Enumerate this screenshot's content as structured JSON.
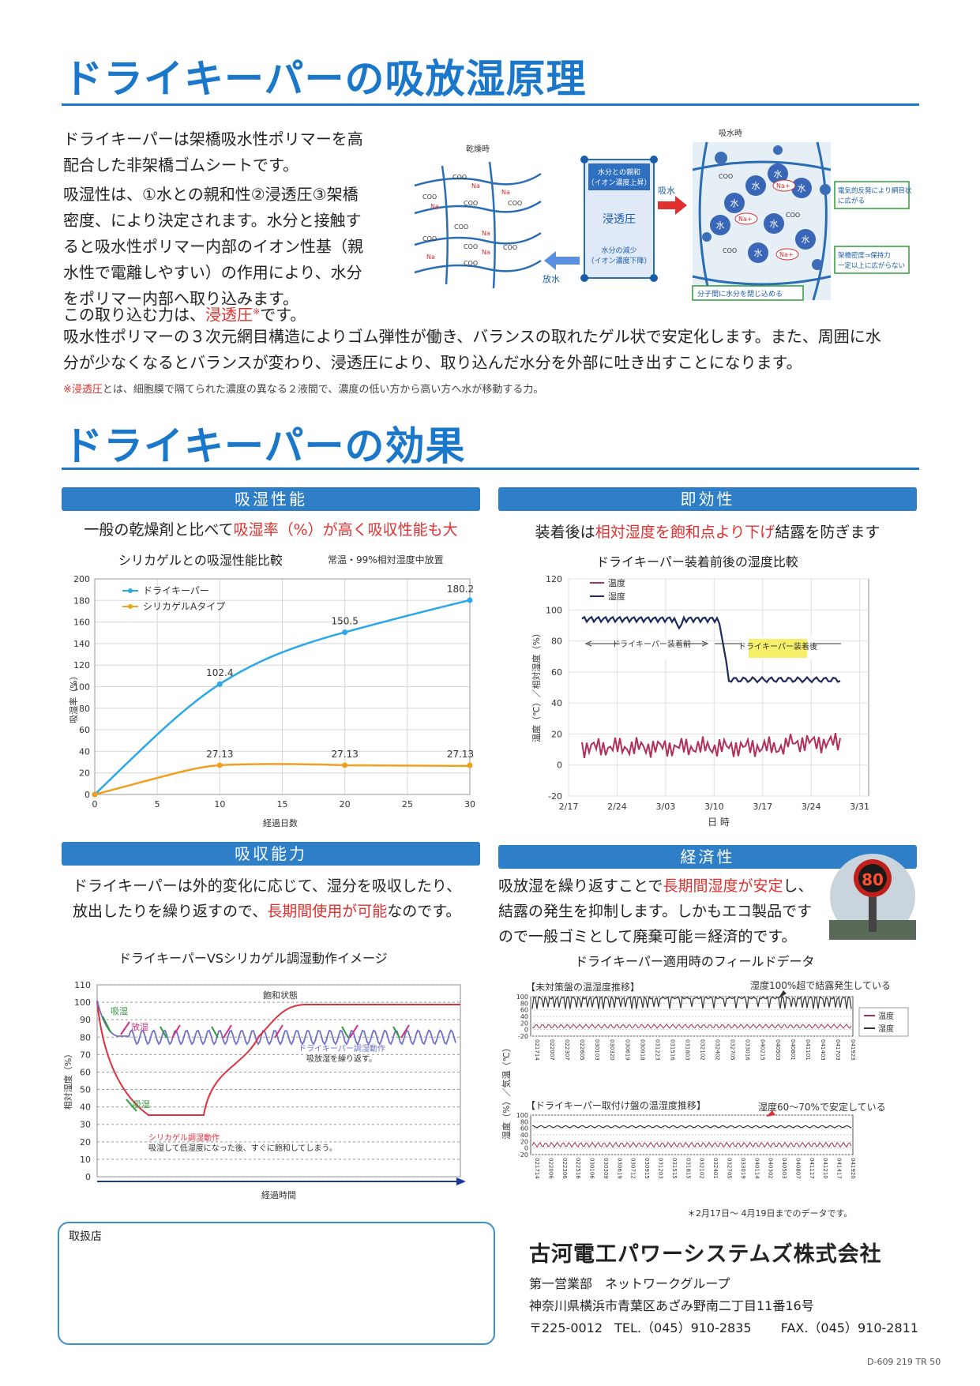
{
  "section1": {
    "title": "ドライキーパーの吸放湿原理",
    "para1": [
      "ドライキーパーは架橋吸水性ポリマーを高",
      "配合した非架橋ゴムシートです。"
    ],
    "para2": [
      "吸湿性は、①水との親和性②浸透圧③架橋",
      "密度、により決定されます。水分と接触す",
      "ると吸水性ポリマー内部のイオン性基（親",
      "水性で電離しやすい）の作用により、水分",
      "をポリマー内部へ取り込みます。"
    ],
    "para3_prefix": "この取り込む力は、",
    "para3_red": "浸透圧",
    "para3_mark": "※",
    "para3_suffix": "です。",
    "para4": [
      "吸水性ポリマーの３次元網目構造によりゴム弾性が働き、バランスの取れたゲル状で安定化します。また、周囲に水",
      "分が少なくなるとバランスが変わり、浸透圧により、取り込んだ水分を外部に吐き出すことになります。"
    ],
    "footnote_red": "※浸透圧",
    "footnote": "とは、細胞膜で隔てられた濃度の異なる２液間で、濃度の低い方から高い方へ水が移動する力。",
    "diagram": {
      "dry_label": "乾燥時",
      "wet_label": "吸水時",
      "box_top": [
        "水分との親和",
        "（イオン濃度上昇）"
      ],
      "box_mid": "浸透圧",
      "box_bottom": [
        "水分の減少",
        "（イオン濃度下降）"
      ],
      "absorb": "吸水",
      "release": "放水",
      "coo": "COO",
      "na": "Na",
      "water": "水",
      "na_plus": "Na+",
      "note1": [
        "電気的反発により網目状",
        "に広がる"
      ],
      "note2": [
        "架橋密度⇒保持力",
        "一定以上に広がらない"
      ],
      "note3": "分子間に水分を閉じ込める"
    }
  },
  "section2": {
    "title": "ドライキーパーの効果",
    "p1": {
      "band": "吸湿性能",
      "sub_prefix": "一般の乾燥剤と比べて",
      "sub_red": "吸湿率（%）が高く吸収性能も大",
      "chart_title": "シリカゲルとの吸湿性能比較",
      "chart_note": "常温・99%相対湿度中放置"
    },
    "p2": {
      "band": "即効性",
      "sub_prefix": "装着後は",
      "sub_red": "相対湿度を飽和点より下げ",
      "sub_suffix": "結露を防ぎます",
      "chart_title": "ドライキーパー装着前後の湿度比較"
    },
    "p3": {
      "band": "吸収能力",
      "line1": "ドライキーパーは外的変化に応じて、湿分を吸収したり、",
      "line2_prefix": "放出したりを繰り返すので、",
      "line2_red": "長期間使用が可能",
      "line2_suffix": "なのです。",
      "chart_title": "ドライキーパーVSシリカゲル調湿動作イメージ"
    },
    "p4": {
      "band": "経済性",
      "line1_prefix": "吸放湿を繰り返すことで",
      "line1_red": "長期間湿度が安定",
      "line1_suffix": "し、",
      "line2": "結露の発生を抑制します。しかもエコ製品です",
      "line3": "ので一般ゴミとして廃棄可能＝経済的です。",
      "sign_value": "80",
      "chart_title": "ドライキーパー適用時のフィールドデータ",
      "field_top_title": "【未対策盤の温湿度推移】",
      "field_top_note": "湿度100%超で結露発生している",
      "field_bottom_title": "【ドライキーパー取付け盤の温湿度推移】",
      "field_bottom_note": "湿度60～70%で安定している",
      "field_legend": [
        "温度",
        "湿度"
      ],
      "field_ylabel": "湿度（%）／気温（℃）",
      "field_yticks": [
        "100",
        "80",
        "60",
        "40",
        "20",
        "0",
        "-20"
      ],
      "field_xticks_top": [
        "021714",
        "022007",
        "022307",
        "022605",
        "030103",
        "030320",
        "030619",
        "030918",
        "031223",
        "031516",
        "031803",
        "032102",
        "032402",
        "032705",
        "033016",
        "040215",
        "040503",
        "040801",
        "041101",
        "041403",
        "041703",
        "041923"
      ],
      "field_xticks_bottom": [
        "021714",
        "022006",
        "022306",
        "022516",
        "030106",
        "030309",
        "030619",
        "030712",
        "030915",
        "031203",
        "031515",
        "031815",
        "032102",
        "032401",
        "032705",
        "033019",
        "040114",
        "040302",
        "040503",
        "040807",
        "041117",
        "041210",
        "041417",
        "041920"
      ],
      "field_footnote": "＊2月17日～ 4月19日までのデータです。"
    }
  },
  "chart_data": [
    {
      "type": "line",
      "title": "シリカゲルとの吸湿性能比較",
      "subtitle": "常温・99%相対湿度中放置",
      "xlabel": "経過日数",
      "ylabel": "吸湿率（%）",
      "xlim": [
        0,
        30
      ],
      "ylim": [
        0,
        200
      ],
      "xticks": [
        0,
        5,
        10,
        15,
        20,
        25,
        30
      ],
      "yticks": [
        0,
        20,
        40,
        60,
        80,
        100,
        120,
        140,
        160,
        180,
        200
      ],
      "grid": true,
      "legend": "top-left",
      "series": [
        {
          "name": "ドライキーパー",
          "color": "#2aa8e8",
          "x": [
            0,
            10,
            20,
            30
          ],
          "y": [
            0,
            102.4,
            150.5,
            180.2
          ],
          "labels": [
            "",
            "102.4",
            "150.5",
            "180.2"
          ]
        },
        {
          "name": "シリカゲルAタイプ",
          "color": "#f0a020",
          "x": [
            0,
            10,
            20,
            30
          ],
          "y": [
            0,
            27.13,
            27.13,
            27.13
          ],
          "labels": [
            "",
            "27.13",
            "27.13",
            "27.13"
          ]
        }
      ]
    },
    {
      "type": "line",
      "title": "ドライキーパー装着前後の湿度比較",
      "xlabel": "日 時",
      "ylabel": "温度（℃）／相対湿度（%）",
      "ylim": [
        -20,
        120
      ],
      "yticks": [
        -20,
        0,
        20,
        40,
        60,
        80,
        100,
        120
      ],
      "xticks": [
        "2/17",
        "2/24",
        "3/03",
        "3/10",
        "3/17",
        "3/24",
        "3/31"
      ],
      "legend": "top-left",
      "annotations": [
        "ドライキーパー装着前",
        "ドライキーパー装着後"
      ],
      "series": [
        {
          "name": "温度",
          "color": "#b0305a",
          "approx_range": [
            5,
            18
          ]
        },
        {
          "name": "湿度",
          "color": "#1e2a5a",
          "before": 94,
          "after": 55
        }
      ]
    },
    {
      "type": "line",
      "title": "ドライキーパーVSシリカゲル調湿動作イメージ",
      "xlabel": "経過時間",
      "ylabel": "相対湿度（%）",
      "ylim": [
        0,
        110
      ],
      "yticks": [
        0,
        10,
        20,
        30,
        40,
        50,
        60,
        70,
        80,
        90,
        100,
        110
      ],
      "annotations": [
        "吸湿",
        "放湿",
        "吸湿",
        "飽和状態",
        "ドライキーパー調湿動作",
        "吸放湿を繰り返す。",
        "シリカゲル調湿動作",
        "吸湿して低湿度になった後、すぐに飽和してしまう。"
      ],
      "series": [
        {
          "name": "ドライキーパー調湿動作",
          "color": "#7070c8",
          "level": 80
        },
        {
          "name": "シリカゲル調湿動作",
          "color": "#e03040",
          "min": 30,
          "max": 99
        }
      ]
    }
  ],
  "company": {
    "name": "古河電工パワーシステムズ株式会社",
    "dept": "第一営業部　ネットワークグループ",
    "address": "神奈川県横浜市青葉区あざみ野南二丁目11番16号",
    "zip": "〒225-0012",
    "tel": "TEL.（045）910-2835",
    "fax": "FAX.（045）910-2811"
  },
  "dealer_label": "取扱店",
  "doc_code": "D-609 219 TR 50"
}
